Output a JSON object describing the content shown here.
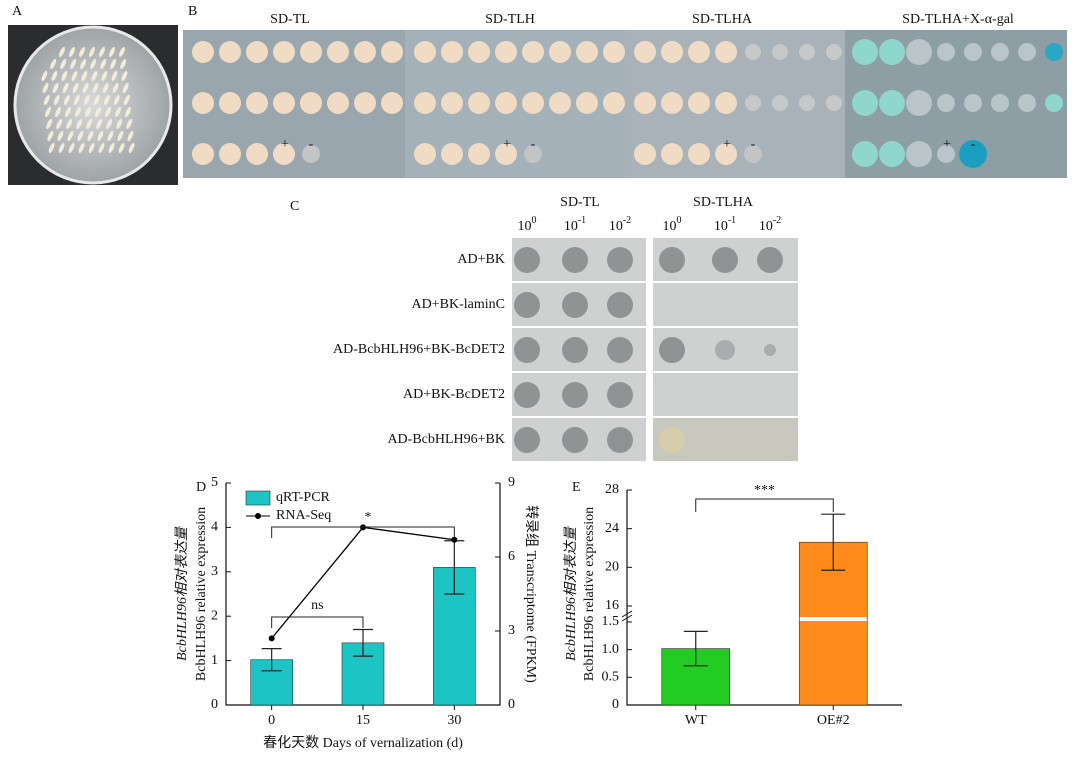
{
  "panel_a": {
    "label": "A"
  },
  "panel_b": {
    "label": "B",
    "headings": [
      "SD-TL",
      "SD-TLH",
      "SD-TLHA",
      "SD-TLHA+X-α-gal"
    ],
    "markers": [
      "+",
      "-"
    ]
  },
  "panel_c": {
    "label": "C",
    "media": [
      "SD-TL",
      "SD-TLHA"
    ],
    "dilution_base": "10",
    "dilution_exponents": [
      "0",
      "-1",
      "-2"
    ],
    "rows": [
      "AD+BK",
      "AD+BK-laminC",
      "AD-BcbHLH96+BK-BcDET2",
      "AD+BK-BcDET2",
      "AD-BcbHLH96+BK"
    ]
  },
  "chart_data": [
    {
      "type": "bar-line",
      "panel_label": "D",
      "categories": [
        "0",
        "15",
        "30"
      ],
      "x_label": "春化天数 Days of vernalization (d)",
      "y_label": [
        "BcbHLH96相对表达量",
        "BcbHLH96 relative expression"
      ],
      "y2_label": "转录组 Transcriptome (FPKM)",
      "ylim": [
        0,
        5
      ],
      "yticks": [
        0,
        1,
        2,
        3,
        4,
        5
      ],
      "y2lim": [
        0,
        9
      ],
      "y2ticks": [
        0,
        3,
        6,
        9
      ],
      "series": [
        {
          "name": "qRT-PCR",
          "kind": "bar",
          "color": "#1cc4c4",
          "values": [
            1.02,
            1.4,
            3.1
          ],
          "errors": [
            0.25,
            0.3,
            0.6
          ]
        },
        {
          "name": "RNA-Seq",
          "kind": "line",
          "color": "#000000",
          "axis": "y2",
          "values": [
            2.7,
            7.2,
            6.7
          ]
        }
      ],
      "annotations": [
        "ns",
        "*"
      ]
    },
    {
      "type": "broken-bar",
      "panel_label": "E",
      "categories": [
        "WT",
        "OE#2"
      ],
      "y_label": [
        "BcbHLH96相对表达量",
        "BcbHLH96 relative expression"
      ],
      "segments": [
        {
          "ylim": [
            0,
            1.5
          ],
          "yticks": [
            0,
            0.5,
            {
              "value": 1,
              "label": "1.0"
            },
            1.5
          ]
        },
        {
          "ylim": [
            16,
            28
          ],
          "yticks": [
            16,
            20,
            24,
            28
          ]
        }
      ],
      "colors": [
        "#22cc22",
        "#ff8a1c"
      ],
      "values": [
        1.02,
        22.6
      ],
      "errors": [
        0.31,
        2.9
      ],
      "annotations": [
        "***"
      ]
    }
  ]
}
